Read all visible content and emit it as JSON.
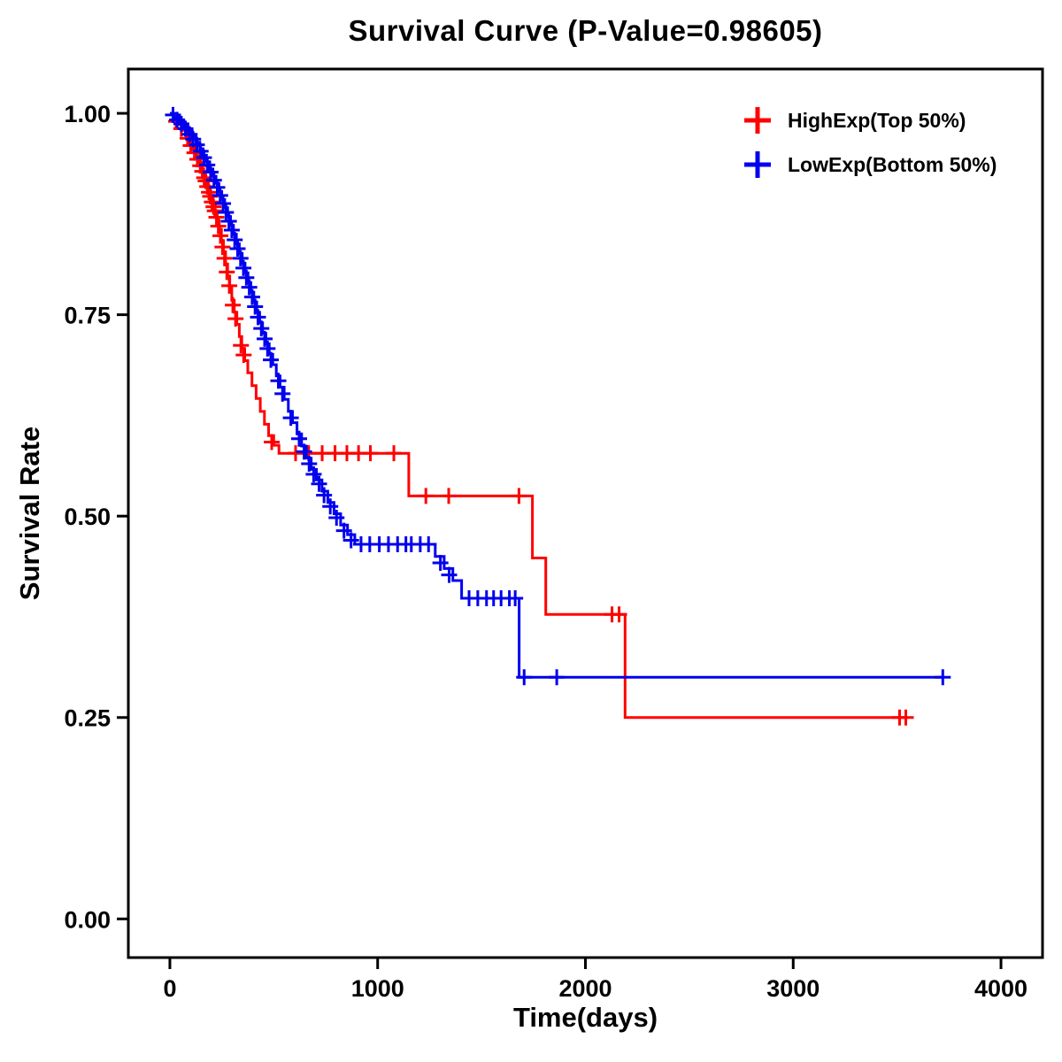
{
  "chart_data": {
    "type": "line",
    "subtype": "kaplan-meier-step",
    "title": "Survival Curve (P-Value=0.98605)",
    "p_value": "0.98605",
    "xlabel": "Time(days)",
    "ylabel": "Survival Rate",
    "xlim": [
      -200,
      4200
    ],
    "ylim": [
      -0.048,
      1.055
    ],
    "grid": false,
    "legend_position": "top-right-inside",
    "background_color": "#ffffff",
    "axis_color": "#000000",
    "xticks": [
      {
        "value": 0,
        "label": "0"
      },
      {
        "value": 1000,
        "label": "1000"
      },
      {
        "value": 2000,
        "label": "2000"
      },
      {
        "value": 3000,
        "label": "3000"
      },
      {
        "value": 4000,
        "label": "4000"
      }
    ],
    "yticks": [
      {
        "value": 0.0,
        "label": "0.00"
      },
      {
        "value": 0.25,
        "label": "0.25"
      },
      {
        "value": 0.5,
        "label": "0.50"
      },
      {
        "value": 0.75,
        "label": "0.75"
      },
      {
        "value": 1.0,
        "label": "1.00"
      }
    ],
    "series": [
      {
        "id": "highexp",
        "name": "HighExp(Top 50%)",
        "color": "#FF0000",
        "steps": [
          [
            0,
            1.0
          ],
          [
            20,
            0.993
          ],
          [
            40,
            0.986
          ],
          [
            60,
            0.979
          ],
          [
            80,
            0.971
          ],
          [
            95,
            0.963
          ],
          [
            110,
            0.955
          ],
          [
            125,
            0.947
          ],
          [
            140,
            0.939
          ],
          [
            152,
            0.931
          ],
          [
            163,
            0.922
          ],
          [
            174,
            0.913
          ],
          [
            185,
            0.904
          ],
          [
            196,
            0.895
          ],
          [
            207,
            0.886
          ],
          [
            218,
            0.877
          ],
          [
            228,
            0.867
          ],
          [
            238,
            0.856
          ],
          [
            248,
            0.842
          ],
          [
            258,
            0.828
          ],
          [
            268,
            0.813
          ],
          [
            278,
            0.798
          ],
          [
            288,
            0.783
          ],
          [
            298,
            0.768
          ],
          [
            310,
            0.753
          ],
          [
            322,
            0.738
          ],
          [
            334,
            0.723
          ],
          [
            346,
            0.708
          ],
          [
            360,
            0.693
          ],
          [
            375,
            0.678
          ],
          [
            395,
            0.662
          ],
          [
            415,
            0.646
          ],
          [
            435,
            0.63
          ],
          [
            455,
            0.614
          ],
          [
            475,
            0.6
          ],
          [
            500,
            0.588
          ],
          [
            525,
            0.578
          ],
          [
            1150,
            0.525
          ],
          [
            1745,
            0.448
          ],
          [
            1809,
            0.378
          ],
          [
            2191,
            0.25
          ],
          [
            3550,
            0.25
          ]
        ],
        "censors": [
          [
            30,
            0.99
          ],
          [
            55,
            0.981
          ],
          [
            85,
            0.969
          ],
          [
            100,
            0.96
          ],
          [
            118,
            0.951
          ],
          [
            132,
            0.943
          ],
          [
            146,
            0.935
          ],
          [
            156,
            0.928
          ],
          [
            165,
            0.92
          ],
          [
            172,
            0.916
          ],
          [
            180,
            0.909
          ],
          [
            188,
            0.902
          ],
          [
            194,
            0.897
          ],
          [
            202,
            0.89
          ],
          [
            210,
            0.884
          ],
          [
            216,
            0.879
          ],
          [
            224,
            0.871
          ],
          [
            233,
            0.86
          ],
          [
            243,
            0.848
          ],
          [
            253,
            0.834
          ],
          [
            263,
            0.82
          ],
          [
            274,
            0.803
          ],
          [
            286,
            0.786
          ],
          [
            303,
            0.762
          ],
          [
            316,
            0.745
          ],
          [
            342,
            0.712
          ],
          [
            355,
            0.7
          ],
          [
            490,
            0.592
          ],
          [
            605,
            0.578
          ],
          [
            668,
            0.578
          ],
          [
            733,
            0.578
          ],
          [
            795,
            0.578
          ],
          [
            852,
            0.578
          ],
          [
            908,
            0.578
          ],
          [
            965,
            0.578
          ],
          [
            1078,
            0.578
          ],
          [
            1232,
            0.525
          ],
          [
            1342,
            0.525
          ],
          [
            1680,
            0.525
          ],
          [
            2128,
            0.378
          ],
          [
            2162,
            0.378
          ],
          [
            3512,
            0.25
          ],
          [
            3542,
            0.25
          ]
        ]
      },
      {
        "id": "lowexp",
        "name": "LowExp(Bottom 50%)",
        "color": "#0000EE",
        "steps": [
          [
            0,
            1.0
          ],
          [
            25,
            0.995
          ],
          [
            48,
            0.99
          ],
          [
            68,
            0.984
          ],
          [
            88,
            0.978
          ],
          [
            108,
            0.971
          ],
          [
            126,
            0.964
          ],
          [
            144,
            0.956
          ],
          [
            160,
            0.948
          ],
          [
            176,
            0.94
          ],
          [
            192,
            0.931
          ],
          [
            207,
            0.922
          ],
          [
            222,
            0.913
          ],
          [
            236,
            0.903
          ],
          [
            250,
            0.893
          ],
          [
            264,
            0.883
          ],
          [
            278,
            0.872
          ],
          [
            292,
            0.861
          ],
          [
            306,
            0.85
          ],
          [
            320,
            0.838
          ],
          [
            334,
            0.826
          ],
          [
            348,
            0.814
          ],
          [
            362,
            0.802
          ],
          [
            376,
            0.79
          ],
          [
            390,
            0.778
          ],
          [
            404,
            0.766
          ],
          [
            418,
            0.753
          ],
          [
            432,
            0.74
          ],
          [
            446,
            0.727
          ],
          [
            462,
            0.714
          ],
          [
            478,
            0.701
          ],
          [
            495,
            0.688
          ],
          [
            512,
            0.674
          ],
          [
            530,
            0.66
          ],
          [
            550,
            0.645
          ],
          [
            570,
            0.63
          ],
          [
            590,
            0.616
          ],
          [
            612,
            0.602
          ],
          [
            634,
            0.587
          ],
          [
            656,
            0.572
          ],
          [
            680,
            0.558
          ],
          [
            705,
            0.545
          ],
          [
            732,
            0.531
          ],
          [
            760,
            0.517
          ],
          [
            790,
            0.503
          ],
          [
            822,
            0.489
          ],
          [
            855,
            0.477
          ],
          [
            890,
            0.465
          ],
          [
            1277,
            0.45
          ],
          [
            1320,
            0.435
          ],
          [
            1362,
            0.42
          ],
          [
            1404,
            0.398
          ],
          [
            1681,
            0.3
          ],
          [
            3723,
            0.3
          ]
        ],
        "censors": [
          [
            15,
            0.998
          ],
          [
            35,
            0.992
          ],
          [
            55,
            0.987
          ],
          [
            75,
            0.981
          ],
          [
            95,
            0.974
          ],
          [
            112,
            0.968
          ],
          [
            130,
            0.961
          ],
          [
            148,
            0.953
          ],
          [
            164,
            0.945
          ],
          [
            180,
            0.936
          ],
          [
            196,
            0.927
          ],
          [
            212,
            0.917
          ],
          [
            228,
            0.908
          ],
          [
            242,
            0.898
          ],
          [
            256,
            0.888
          ],
          [
            270,
            0.877
          ],
          [
            284,
            0.866
          ],
          [
            298,
            0.855
          ],
          [
            312,
            0.843
          ],
          [
            326,
            0.832
          ],
          [
            340,
            0.82
          ],
          [
            354,
            0.808
          ],
          [
            368,
            0.796
          ],
          [
            382,
            0.784
          ],
          [
            396,
            0.772
          ],
          [
            410,
            0.76
          ],
          [
            424,
            0.747
          ],
          [
            440,
            0.733
          ],
          [
            456,
            0.72
          ],
          [
            470,
            0.708
          ],
          [
            486,
            0.694
          ],
          [
            522,
            0.668
          ],
          [
            542,
            0.652
          ],
          [
            582,
            0.622
          ],
          [
            622,
            0.596
          ],
          [
            646,
            0.58
          ],
          [
            670,
            0.565
          ],
          [
            692,
            0.552
          ],
          [
            718,
            0.54
          ],
          [
            742,
            0.526
          ],
          [
            772,
            0.512
          ],
          [
            802,
            0.498
          ],
          [
            838,
            0.482
          ],
          [
            872,
            0.47
          ],
          [
            920,
            0.465
          ],
          [
            962,
            0.465
          ],
          [
            1008,
            0.465
          ],
          [
            1052,
            0.465
          ],
          [
            1096,
            0.465
          ],
          [
            1136,
            0.465
          ],
          [
            1162,
            0.465
          ],
          [
            1205,
            0.465
          ],
          [
            1245,
            0.465
          ],
          [
            1302,
            0.442
          ],
          [
            1344,
            0.427
          ],
          [
            1440,
            0.398
          ],
          [
            1482,
            0.398
          ],
          [
            1524,
            0.398
          ],
          [
            1558,
            0.398
          ],
          [
            1594,
            0.398
          ],
          [
            1634,
            0.398
          ],
          [
            1662,
            0.398
          ],
          [
            1705,
            0.3
          ],
          [
            1862,
            0.3
          ],
          [
            3720,
            0.3
          ]
        ]
      }
    ]
  }
}
